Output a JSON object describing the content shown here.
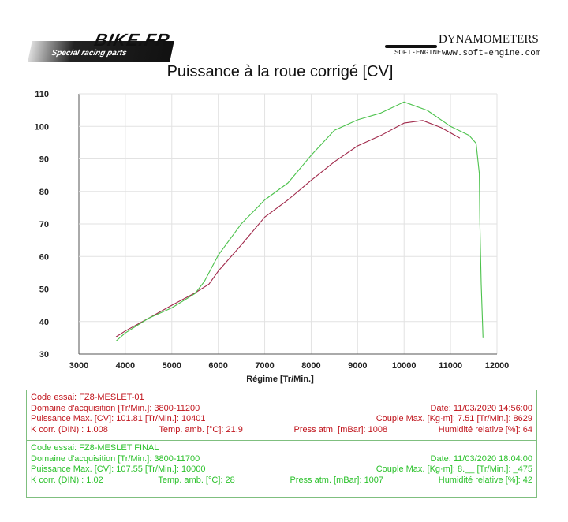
{
  "header": {
    "left_logo": "BIKE.FR",
    "left_logo_sub": "Special racing parts",
    "right_logo": "DYNAMOMETERS",
    "right_logo_sub": "SOFT-ENGINE",
    "right_url": "www.soft-engine.com"
  },
  "colors": {
    "run1": "#a0284a",
    "run2": "#4cc24c"
  },
  "chart_data": {
    "type": "line",
    "title": "Puissance à la roue corrigé [CV]",
    "xlabel": "Régime [Tr/Min.]",
    "ylabel": "",
    "xlim": [
      3000,
      12000
    ],
    "ylim": [
      30,
      110
    ],
    "xticks": [
      "3000",
      "4000",
      "5000",
      "6000",
      "7000",
      "8000",
      "9000",
      "10000",
      "11000",
      "12000"
    ],
    "yticks": [
      "30",
      "40",
      "50",
      "60",
      "70",
      "80",
      "90",
      "100",
      "110"
    ],
    "grid": true,
    "series": [
      {
        "name": "FZ8-MESLET-01",
        "x": [
          3800,
          4000,
          4500,
          5000,
          5500,
          5800,
          6000,
          6500,
          7000,
          7500,
          8000,
          8500,
          9000,
          9500,
          10000,
          10400,
          10800,
          11200
        ],
        "y": [
          35.3,
          37.1,
          41,
          45,
          48.8,
          51.5,
          55.5,
          63.6,
          72.1,
          77.4,
          83.4,
          89.1,
          94,
          97.2,
          101,
          101.8,
          99.6,
          96.4
        ]
      },
      {
        "name": "FZ8-MESLET FINAL",
        "x": [
          3800,
          4000,
          4500,
          5000,
          5500,
          5700,
          6000,
          6500,
          7000,
          7500,
          8000,
          8500,
          9000,
          9500,
          10000,
          10500,
          11000,
          11400,
          11550,
          11620,
          11630,
          11660,
          11700
        ],
        "y": [
          34,
          36.5,
          41,
          44.2,
          48.6,
          52.3,
          60.4,
          70.1,
          77.4,
          82.6,
          91.1,
          98.8,
          102,
          104.1,
          107.5,
          104.9,
          100,
          97.2,
          94.8,
          85.5,
          71.7,
          51.5,
          34.9
        ]
      }
    ]
  },
  "run1": {
    "code": "Code essai: FZ8-MESLET-01",
    "domain": "Domaine d'acquisition [Tr/Min.]: 3800-11200",
    "date": "Date: 11/03/2020   14:56:00",
    "pmax": "Puissance Max. [CV]: 101.81   [Tr/Min.]: 10401",
    "cmax": "Couple Max. [Kg·m]: 7.51   [Tr/Min.]: 8629",
    "kcorr": "K corr. (DIN) : 1.008",
    "temp": "Temp. amb. [°C]: 21.9",
    "press": "Press atm. [mBar]: 1008",
    "hum": "Humidité relative [%]: 64"
  },
  "run2": {
    "code": "Code essai: FZ8-MESLET FINAL",
    "domain": "Domaine d'acquisition [Tr/Min.]: 3800-11700",
    "date": "Date: 11/03/2020   18:04:00",
    "pmax": "Puissance Max. [CV]: 107.55   [Tr/Min.]: 10000",
    "cmax": "Couple Max. [Kg·m]: 8.__   [Tr/Min.]: _475",
    "kcorr": "K corr. (DIN) : 1.02",
    "temp": "Temp. amb. [°C]: 28",
    "press": "Press atm. [mBar]: 1007",
    "hum": "Humidité relative [%]: 42"
  }
}
